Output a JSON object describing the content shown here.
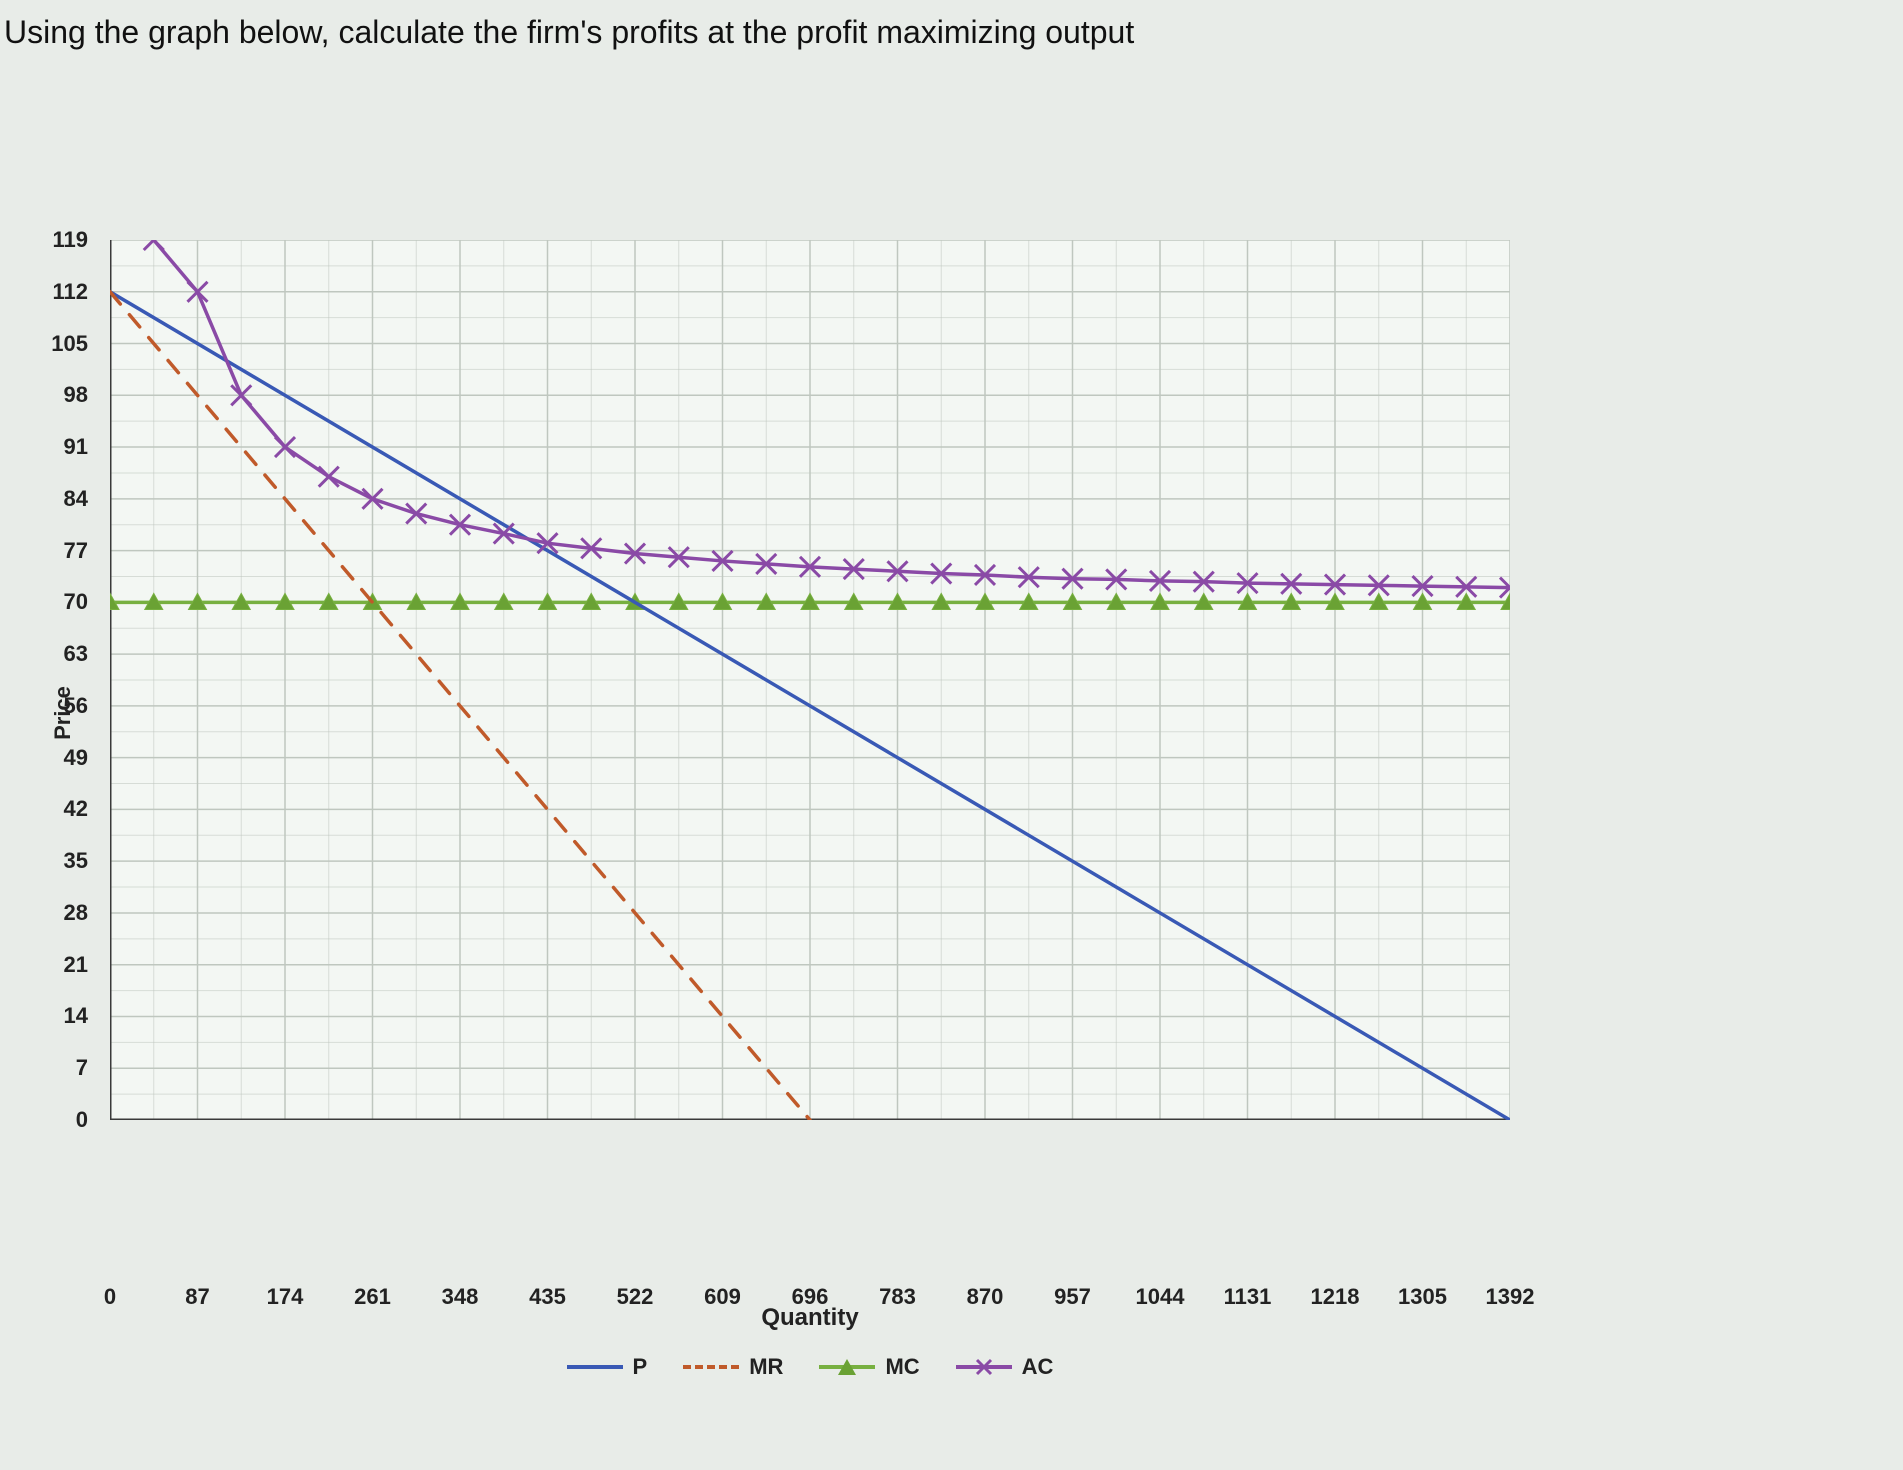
{
  "prompt": "Using the graph below, calculate the firm's profits at the profit maximizing output",
  "chart": {
    "type": "line",
    "xlabel": "Quantity",
    "ylabel": "Price",
    "xlim": [
      0,
      1392
    ],
    "ylim": [
      0,
      119
    ],
    "xtick_step": 87,
    "ytick_step": 7,
    "xticks": [
      0,
      87,
      174,
      261,
      348,
      435,
      522,
      609,
      696,
      783,
      870,
      957,
      1044,
      1131,
      1218,
      1305,
      1392
    ],
    "yticks": [
      0,
      7,
      14,
      21,
      28,
      35,
      42,
      49,
      56,
      63,
      70,
      77,
      84,
      91,
      98,
      105,
      112,
      119
    ],
    "background_color": "#f3f7f3",
    "grid_color": "#bfc7bf",
    "axis_color": "#3a3a3a",
    "label_fontsize": 24,
    "tick_fontsize": 22,
    "line_width": 3.5,
    "series": {
      "P": {
        "label": "P",
        "color": "#3959b5",
        "style": "solid",
        "marker": "none",
        "x": [
          0,
          1392
        ],
        "y": [
          112,
          0
        ]
      },
      "MR": {
        "label": "MR",
        "color": "#c05a2a",
        "style": "dash",
        "marker": "none",
        "x": [
          0,
          696
        ],
        "y": [
          112,
          0
        ]
      },
      "MC": {
        "label": "MC",
        "color": "#77b040",
        "style": "solid",
        "marker": "triangle",
        "marker_fill": "#6aa234",
        "marker_size": 9,
        "x": [
          0,
          43.5,
          87,
          130.5,
          174,
          217.5,
          261,
          304.5,
          348,
          391.5,
          435,
          478.5,
          522,
          565.5,
          609,
          652.5,
          696,
          739.5,
          783,
          826.5,
          870,
          913.5,
          957,
          1000.5,
          1044,
          1087.5,
          1131,
          1174.5,
          1218,
          1261.5,
          1305,
          1348.5,
          1392
        ],
        "y": [
          70,
          70,
          70,
          70,
          70,
          70,
          70,
          70,
          70,
          70,
          70,
          70,
          70,
          70,
          70,
          70,
          70,
          70,
          70,
          70,
          70,
          70,
          70,
          70,
          70,
          70,
          70,
          70,
          70,
          70,
          70,
          70,
          70
        ]
      },
      "AC": {
        "label": "AC",
        "color": "#8a4aa6",
        "style": "solid",
        "marker": "x",
        "marker_size": 10,
        "x": [
          43.5,
          87,
          130.5,
          174,
          217.5,
          261,
          304.5,
          348,
          391.5,
          435,
          478.5,
          522,
          565.5,
          609,
          652.5,
          696,
          739.5,
          783,
          826.5,
          870,
          913.5,
          957,
          1000.5,
          1044,
          1087.5,
          1131,
          1174.5,
          1218,
          1261.5,
          1305,
          1348.5,
          1392
        ],
        "y": [
          119,
          112,
          98,
          91,
          87,
          84,
          82,
          80.5,
          79.3,
          78,
          77.3,
          76.6,
          76.1,
          75.6,
          75.2,
          74.8,
          74.5,
          74.2,
          73.9,
          73.7,
          73.4,
          73.2,
          73.1,
          72.9,
          72.8,
          72.6,
          72.5,
          72.4,
          72.3,
          72.2,
          72.1,
          72.0
        ]
      }
    },
    "legend_order": [
      "P",
      "MR",
      "MC",
      "AC"
    ]
  }
}
